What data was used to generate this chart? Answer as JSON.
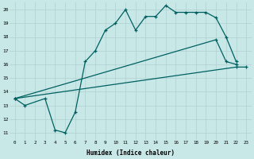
{
  "background_color": "#c8e8e8",
  "grid_color": "#b0d0d0",
  "line_color": "#006060",
  "xlabel": "Humidex (Indice chaleur)",
  "ylim": [
    10.5,
    20.5
  ],
  "xlim": [
    -0.5,
    23.5
  ],
  "yticks": [
    11,
    12,
    13,
    14,
    15,
    16,
    17,
    18,
    19,
    20
  ],
  "xticks": [
    0,
    1,
    2,
    3,
    4,
    5,
    6,
    7,
    8,
    9,
    10,
    11,
    12,
    13,
    14,
    15,
    16,
    17,
    18,
    19,
    20,
    21,
    22,
    23
  ],
  "s1x": [
    0,
    1,
    3,
    4,
    5,
    6,
    7,
    8,
    9,
    10,
    11,
    12,
    13,
    14,
    15,
    16,
    17,
    18,
    19,
    20,
    21,
    22
  ],
  "s1y": [
    13.5,
    13.0,
    13.5,
    11.2,
    11.0,
    12.5,
    16.2,
    17.0,
    18.5,
    19.0,
    20.0,
    18.5,
    19.5,
    19.5,
    20.3,
    19.8,
    19.8,
    19.8,
    19.8,
    19.4,
    18.0,
    16.2
  ],
  "s2x": [
    0,
    20,
    21,
    22
  ],
  "s2y": [
    13.5,
    17.8,
    16.2,
    16.0
  ],
  "s3x": [
    0,
    22,
    23
  ],
  "s3y": [
    13.5,
    15.8,
    15.8
  ]
}
